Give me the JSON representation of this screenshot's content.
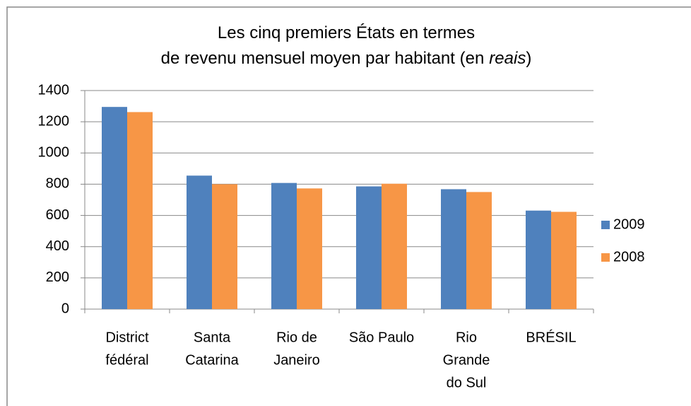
{
  "chart_data": {
    "type": "bar",
    "title": [
      [
        "Les cinq premiers États en termes"
      ],
      [
        "de revenu mensuel moyen par habitant (en",
        "reais",
        ")"
      ]
    ],
    "categories": [
      [
        "District",
        "fédéral"
      ],
      [
        "Santa",
        "Catarina"
      ],
      [
        "Rio de",
        "Janeiro"
      ],
      [
        "São Paulo"
      ],
      [
        "Rio",
        "Grande",
        "do Sul"
      ],
      [
        "BRÉSIL"
      ]
    ],
    "series": [
      {
        "name": "2009",
        "color": "#4f81bd",
        "values": [
          1295,
          855,
          808,
          786,
          768,
          631
        ]
      },
      {
        "name": "2008",
        "color": "#f79646",
        "values": [
          1262,
          800,
          773,
          803,
          750,
          623
        ]
      }
    ],
    "ylim": [
      0,
      1400
    ],
    "yticks": [
      0,
      200,
      400,
      600,
      800,
      1000,
      1200,
      1400
    ],
    "grid": true,
    "legend": "right"
  }
}
